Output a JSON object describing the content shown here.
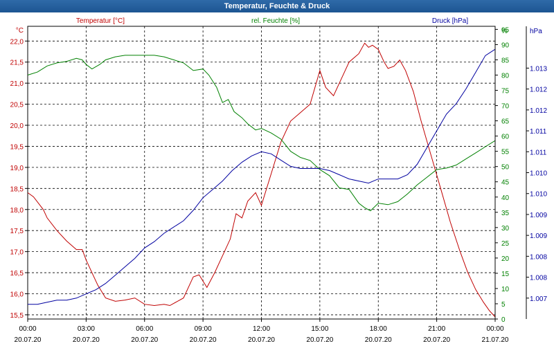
{
  "window": {
    "title": "Temperatur, Feuchte & Druck"
  },
  "chart_data": {
    "type": "line",
    "title": "Temperatur, Feuchte & Druck",
    "x_ticks": [
      {
        "time": "00:00",
        "date": "20.07.20"
      },
      {
        "time": "03:00",
        "date": "20.07.20"
      },
      {
        "time": "06:00",
        "date": "20.07.20"
      },
      {
        "time": "09:00",
        "date": "20.07.20"
      },
      {
        "time": "12:00",
        "date": "20.07.20"
      },
      {
        "time": "15:00",
        "date": "20.07.20"
      },
      {
        "time": "18:00",
        "date": "20.07.20"
      },
      {
        "time": "21:00",
        "date": "20.07.20"
      },
      {
        "time": "00:00",
        "date": "21.07.20"
      }
    ],
    "xlim": [
      0,
      24
    ],
    "grid": true,
    "axes": {
      "temp": {
        "unit": "°C",
        "legend": "Temperatur [°C]",
        "ylim": [
          15.4,
          22.35
        ],
        "ticks": [
          "15,5",
          "16,0",
          "16,5",
          "17,0",
          "17,5",
          "18,0",
          "18,5",
          "19,0",
          "19,5",
          "20,0",
          "20,5",
          "21,0",
          "21,5",
          "22,0"
        ],
        "color": "#c00000"
      },
      "hum": {
        "unit": "%",
        "legend": "rel. Feuchte [%]",
        "ylim": [
          0,
          96
        ],
        "ticks": [
          "0",
          "5",
          "10",
          "15",
          "20",
          "25",
          "30",
          "35",
          "40",
          "45",
          "50",
          "55",
          "60",
          "65",
          "70",
          "75",
          "80",
          "85",
          "90",
          "95",
          "%"
        ],
        "color": "#008000"
      },
      "press": {
        "unit": "hPa",
        "legend": "Druck [hPa]",
        "ylim": [
          1006.5,
          1013.5
        ],
        "ticks": [
          "1.007",
          "1.008",
          "1.008",
          "1.009",
          "1.009",
          "1.010",
          "1.010",
          "1.011",
          "1.011",
          "1.012",
          "1.012",
          "1.013"
        ],
        "color": "#0000a0"
      }
    },
    "series": [
      {
        "name": "Temperatur [°C]",
        "axis": "temp",
        "color": "#c00000",
        "x": [
          0,
          0.3,
          0.8,
          1.0,
          1.5,
          2.0,
          2.5,
          2.8,
          3.0,
          3.3,
          3.6,
          4.0,
          4.5,
          5.0,
          5.5,
          6.0,
          6.5,
          7.0,
          7.3,
          8.0,
          8.5,
          8.8,
          9.2,
          9.6,
          10.0,
          10.4,
          10.7,
          11.0,
          11.3,
          11.7,
          12.0,
          12.5,
          13.0,
          13.5,
          14.0,
          14.5,
          15.0,
          15.3,
          15.7,
          16.0,
          16.5,
          17.0,
          17.3,
          17.5,
          17.7,
          18.0,
          18.3,
          18.5,
          18.8,
          19.1,
          19.4,
          19.8,
          20.2,
          20.7,
          21.2,
          21.7,
          22.2,
          22.6,
          23.0,
          23.4,
          23.7,
          24.0
        ],
        "values": [
          18.4,
          18.3,
          18.0,
          17.8,
          17.5,
          17.25,
          17.05,
          17.05,
          16.8,
          16.5,
          16.2,
          15.9,
          15.82,
          15.85,
          15.9,
          15.75,
          15.72,
          15.75,
          15.72,
          15.9,
          16.4,
          16.45,
          16.15,
          16.5,
          16.9,
          17.3,
          17.9,
          17.8,
          18.2,
          18.4,
          18.1,
          18.85,
          19.6,
          20.1,
          20.3,
          20.5,
          21.3,
          20.9,
          20.7,
          21.0,
          21.5,
          21.7,
          21.95,
          21.85,
          21.9,
          21.8,
          21.5,
          21.35,
          21.4,
          21.55,
          21.3,
          20.8,
          20.1,
          19.3,
          18.5,
          17.7,
          17.0,
          16.5,
          16.1,
          15.8,
          15.6,
          15.45
        ]
      },
      {
        "name": "rel. Feuchte [%]",
        "axis": "hum",
        "color": "#008000",
        "x": [
          0,
          0.5,
          1.0,
          1.5,
          2.0,
          2.5,
          2.8,
          3.0,
          3.3,
          3.7,
          4.0,
          4.5,
          5.0,
          5.5,
          6.0,
          6.5,
          7.0,
          7.5,
          8.0,
          8.5,
          9.0,
          9.3,
          9.7,
          10.0,
          10.3,
          10.6,
          11.0,
          11.3,
          11.7,
          12.0,
          12.5,
          13.0,
          13.5,
          14.0,
          14.5,
          15.0,
          15.5,
          16.0,
          16.5,
          17.0,
          17.3,
          17.6,
          18.0,
          18.5,
          19.0,
          19.5,
          20.0,
          20.5,
          21.0,
          21.5,
          22.0,
          22.5,
          23.0,
          23.5,
          24.0
        ],
        "values": [
          80,
          81,
          83,
          84,
          84.5,
          85.5,
          85,
          83.5,
          82,
          83.5,
          85,
          86,
          86.5,
          86.5,
          86.5,
          86.5,
          86,
          85,
          84,
          81.5,
          82,
          80,
          76,
          71,
          72,
          68,
          66,
          64,
          62,
          62.5,
          61,
          59,
          55,
          53,
          52,
          49,
          47,
          43,
          42.5,
          38,
          36.5,
          35.5,
          38,
          37.5,
          38.5,
          41,
          44,
          46.5,
          49,
          49.5,
          50.5,
          52.5,
          54.5,
          56.5,
          58.5
        ]
      },
      {
        "name": "Druck [hPa]",
        "axis": "press",
        "color": "#0000a0",
        "x": [
          0,
          0.5,
          1.0,
          1.5,
          2.0,
          2.5,
          3.0,
          3.5,
          4.0,
          4.5,
          5.0,
          5.5,
          6.0,
          6.5,
          7.0,
          7.5,
          8.0,
          8.5,
          9.0,
          9.5,
          10.0,
          10.5,
          11.0,
          11.5,
          12.0,
          12.5,
          13.0,
          13.5,
          14.0,
          14.5,
          15.0,
          15.5,
          16.0,
          16.5,
          17.0,
          17.5,
          18.0,
          18.5,
          19.0,
          19.5,
          20.0,
          20.5,
          21.0,
          21.5,
          22.0,
          22.5,
          23.0,
          23.5,
          24.0
        ],
        "values": [
          1006.85,
          1006.85,
          1006.9,
          1006.95,
          1006.95,
          1007.0,
          1007.1,
          1007.2,
          1007.35,
          1007.55,
          1007.75,
          1007.95,
          1008.2,
          1008.35,
          1008.55,
          1008.7,
          1008.85,
          1009.1,
          1009.4,
          1009.6,
          1009.8,
          1010.05,
          1010.25,
          1010.4,
          1010.5,
          1010.45,
          1010.3,
          1010.15,
          1010.1,
          1010.1,
          1010.1,
          1010.05,
          1009.95,
          1009.85,
          1009.8,
          1009.75,
          1009.85,
          1009.85,
          1009.85,
          1009.95,
          1010.2,
          1010.6,
          1011.0,
          1011.4,
          1011.65,
          1012.0,
          1012.4,
          1012.8,
          1012.95
        ]
      }
    ]
  }
}
